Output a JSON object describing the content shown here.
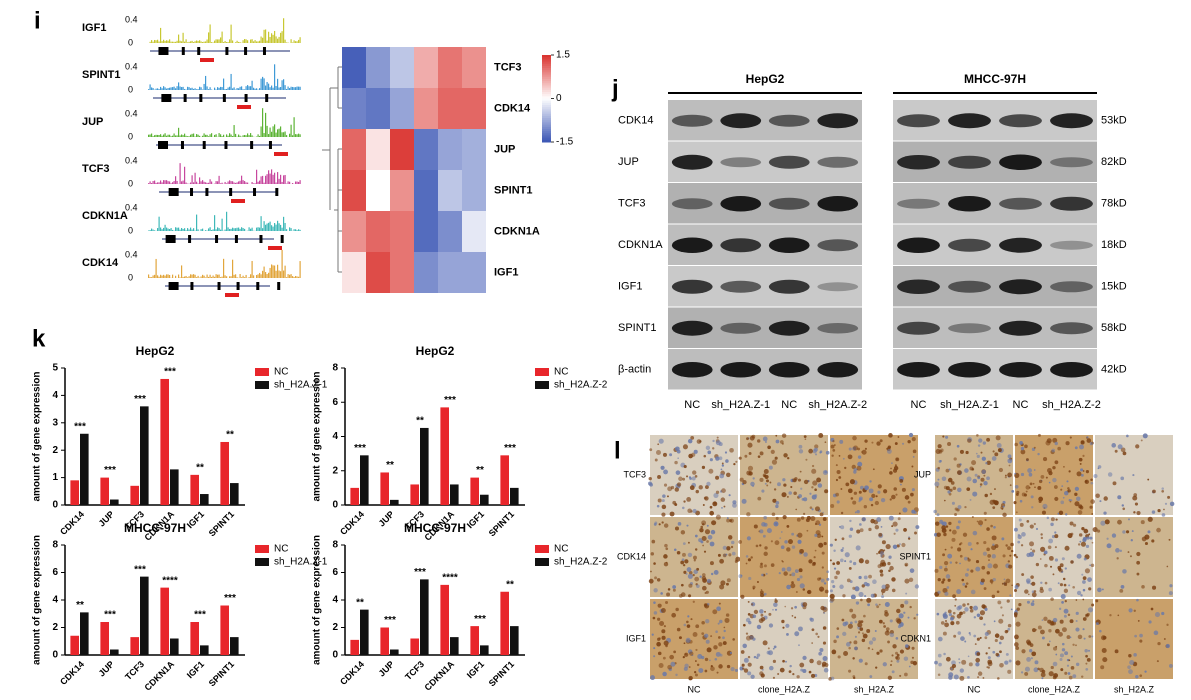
{
  "panel_labels": [
    "i",
    "j",
    "k",
    "l"
  ],
  "tracks": [
    {
      "label": "IGF1",
      "ymax": 0.4,
      "ymin": 0,
      "color": "#c8c832"
    },
    {
      "label": "SPINT1",
      "ymax": 0.4,
      "ymin": 0,
      "color": "#3f9ad6"
    },
    {
      "label": "JUP",
      "ymax": 0.4,
      "ymin": 0,
      "color": "#5cb335"
    },
    {
      "label": "TCF3",
      "ymax": 0.4,
      "ymin": 0,
      "color": "#c7479e"
    },
    {
      "label": "CDKN1A",
      "ymax": 0.4,
      "ymin": 0,
      "color": "#3fb8b8"
    },
    {
      "label": "CDK14",
      "ymax": 0.4,
      "ymin": 0,
      "color": "#e2a63c"
    }
  ],
  "western_blot": {
    "cell_lines": [
      {
        "name": "HepG2",
        "lanes": [
          "NC",
          "sh_H2A.Z-1",
          "NC",
          "sh_H2A.Z-2"
        ]
      },
      {
        "name": "MHCC-97H",
        "lanes": [
          "NC",
          "sh_H2A.Z-1",
          "NC",
          "sh_H2A.Z-2"
        ]
      }
    ],
    "proteins": [
      {
        "name": "CDK14",
        "size": "53kD"
      },
      {
        "name": "JUP",
        "size": "82kD"
      },
      {
        "name": "TCF3",
        "size": "78kD"
      },
      {
        "name": "CDKN1A",
        "size": "18kD"
      },
      {
        "name": "IGF1",
        "size": "15kD"
      },
      {
        "name": "SPINT1",
        "size": "58kD"
      },
      {
        "name": "β-actin",
        "size": "42kD"
      }
    ]
  },
  "ihc": [
    {
      "rows": [
        "TCF3",
        "CDK14",
        "IGF1"
      ],
      "columns": [
        "NC",
        "clone_H2A.Z",
        "sh_H2A.Z"
      ]
    },
    {
      "rows": [
        "JUP",
        "SPINT1",
        "CDKN1"
      ],
      "columns": [
        "NC",
        "clone_H2A.Z",
        "sh_H2A.Z"
      ]
    }
  ],
  "chart_data": [
    {
      "type": "heatmap",
      "rows": [
        "TCF3",
        "CDK14",
        "JUP",
        "SPINT1",
        "CDKN1A",
        "IGF1"
      ],
      "columns": [
        null,
        null,
        null,
        null,
        null,
        null
      ],
      "values": [
        [
          -1.4,
          -0.9,
          -0.5,
          0.6,
          1.0,
          0.8
        ],
        [
          -1.1,
          -1.2,
          -0.8,
          0.8,
          1.1,
          1.1
        ],
        [
          1.1,
          0.2,
          1.4,
          -1.2,
          -0.8,
          -0.7
        ],
        [
          1.3,
          0.0,
          0.8,
          -1.3,
          -0.5,
          -0.7
        ],
        [
          0.8,
          1.1,
          1.0,
          -1.3,
          -1.0,
          -0.2
        ],
        [
          0.2,
          1.3,
          1.0,
          -1.0,
          -0.8,
          -0.8
        ]
      ],
      "zlim": [
        -1.5,
        1.5
      ],
      "zticks": [
        1.5,
        0,
        -1.5
      ],
      "colors": [
        "#3a55b4",
        "#ffffff",
        "#d9302c"
      ]
    },
    {
      "type": "bar",
      "title": "HepG2",
      "y_label": "amount of gene expression",
      "categories": [
        "CDK14",
        "JUP",
        "TCF3",
        "CDKN1A",
        "IGF1",
        "SPINT1"
      ],
      "series": [
        {
          "name": "NC",
          "color": "#e8262b",
          "values": [
            0.9,
            1.0,
            0.7,
            4.6,
            1.1,
            2.3
          ]
        },
        {
          "name": "sh_H2A.Z-1",
          "color": "#111111",
          "values": [
            2.6,
            0.2,
            3.6,
            1.3,
            0.4,
            0.8
          ]
        }
      ],
      "significance": [
        "***",
        "***",
        "***",
        "***",
        "**",
        "**"
      ],
      "ylim": [
        0,
        5
      ],
      "yticks": [
        0,
        1,
        2,
        3,
        4,
        5
      ]
    },
    {
      "type": "bar",
      "title": "HepG2",
      "y_label": "amount of gene expression",
      "categories": [
        "CDK14",
        "JUP",
        "TCF3",
        "CDKN1A",
        "IGF1",
        "SPINT1"
      ],
      "series": [
        {
          "name": "NC",
          "color": "#e8262b",
          "values": [
            1.0,
            1.9,
            1.2,
            5.7,
            1.6,
            2.9
          ]
        },
        {
          "name": "sh_H2A.Z-2",
          "color": "#111111",
          "values": [
            2.9,
            0.3,
            4.5,
            1.2,
            0.6,
            1.0
          ]
        }
      ],
      "significance": [
        "***",
        "**",
        "**",
        "***",
        "**",
        "***"
      ],
      "ylim": [
        0,
        8
      ],
      "yticks": [
        0,
        2,
        4,
        6,
        8
      ]
    },
    {
      "type": "bar",
      "title": "MHCC-97H",
      "y_label": "amount of gene expression",
      "categories": [
        "CDK14",
        "JUP",
        "TCF3",
        "CDKN1A",
        "IGF1",
        "SPINT1"
      ],
      "series": [
        {
          "name": "NC",
          "color": "#e8262b",
          "values": [
            1.4,
            2.4,
            1.3,
            4.9,
            2.4,
            3.6
          ]
        },
        {
          "name": "sh_H2A.Z-1",
          "color": "#111111",
          "values": [
            3.1,
            0.4,
            5.7,
            1.2,
            0.7,
            1.3
          ]
        }
      ],
      "significance": [
        "**",
        "***",
        "***",
        "****",
        "***",
        "***"
      ],
      "ylim": [
        0,
        8
      ],
      "yticks": [
        0,
        2,
        4,
        6,
        8
      ]
    },
    {
      "type": "bar",
      "title": "MHCC-97H",
      "y_label": "amount of gene expression",
      "categories": [
        "CDK14",
        "JUP",
        "TCF3",
        "CDKN1A",
        "IGF1",
        "SPINT1"
      ],
      "series": [
        {
          "name": "NC",
          "color": "#e8262b",
          "values": [
            1.1,
            2.0,
            1.2,
            5.1,
            2.1,
            4.6
          ]
        },
        {
          "name": "sh_H2A.Z-2",
          "color": "#111111",
          "values": [
            3.3,
            0.4,
            5.5,
            1.3,
            0.7,
            2.1
          ]
        }
      ],
      "significance": [
        "**",
        "***",
        "***",
        "****",
        "***",
        "**"
      ],
      "ylim": [
        0,
        8
      ],
      "yticks": [
        0,
        2,
        4,
        6,
        8
      ]
    }
  ]
}
